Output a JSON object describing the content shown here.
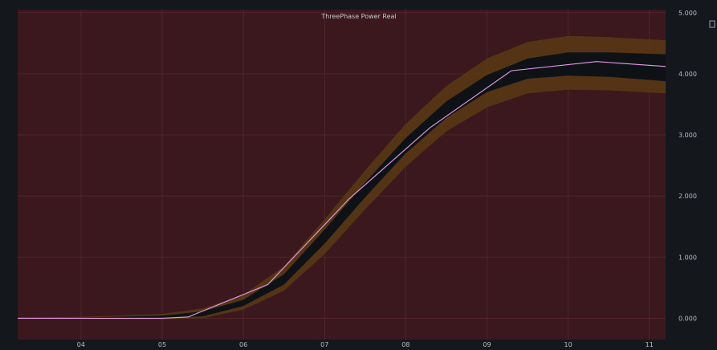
{
  "chart_data": {
    "type": "line",
    "title": "ThreePhase Power Real",
    "xlabel": "",
    "ylabel": "",
    "x_ticks": [
      "04",
      "05",
      "06",
      "07",
      "08",
      "09",
      "10",
      "11"
    ],
    "xlim": [
      3.22,
      11.2
    ],
    "ylim": [
      -0.35,
      5.05
    ],
    "y_ticks": [
      0,
      1,
      2,
      3,
      4,
      5
    ],
    "y_tick_labels": [
      "0.000",
      "1.000",
      "2.000",
      "3.000",
      "4.000",
      "5.000"
    ],
    "grid": true,
    "colors": {
      "page": "#14171c",
      "plot_background": "#3a181d",
      "grid": "#5a2a30",
      "series_line": "#e79be6",
      "inner_band": "#0b1116",
      "outer_band": "#5a3a14"
    },
    "series": [
      {
        "role": "value",
        "x": [
          3.22,
          4.0,
          5.0,
          5.32,
          6.3,
          7.3,
          8.3,
          9.3,
          10.35,
          11.2
        ],
        "y": [
          0.0,
          0.0,
          0.0,
          0.02,
          0.55,
          1.95,
          3.12,
          4.05,
          4.2,
          4.12
        ]
      },
      {
        "role": "inner-band",
        "x": [
          3.22,
          4.0,
          5.0,
          5.5,
          6.0,
          6.5,
          7.0,
          7.5,
          8.0,
          8.5,
          9.0,
          9.5,
          10.0,
          10.5,
          11.2
        ],
        "upper": [
          0.005,
          0.01,
          0.04,
          0.11,
          0.3,
          0.72,
          1.45,
          2.22,
          2.95,
          3.55,
          3.98,
          4.25,
          4.35,
          4.35,
          4.32
        ],
        "lower": [
          -0.005,
          -0.01,
          0.0,
          0.03,
          0.2,
          0.55,
          1.22,
          1.98,
          2.7,
          3.28,
          3.7,
          3.92,
          3.97,
          3.95,
          3.88
        ]
      },
      {
        "role": "outer-band",
        "x": [
          3.22,
          4.0,
          5.0,
          5.5,
          6.0,
          6.5,
          7.0,
          7.5,
          8.0,
          8.5,
          9.0,
          9.5,
          10.0,
          10.5,
          11.2
        ],
        "upper": [
          0.01,
          0.02,
          0.07,
          0.16,
          0.38,
          0.85,
          1.62,
          2.42,
          3.18,
          3.8,
          4.25,
          4.52,
          4.62,
          4.6,
          4.55
        ],
        "lower": [
          -0.01,
          -0.015,
          -0.02,
          0.0,
          0.14,
          0.45,
          1.05,
          1.78,
          2.48,
          3.06,
          3.45,
          3.68,
          3.74,
          3.73,
          3.68
        ]
      }
    ]
  }
}
